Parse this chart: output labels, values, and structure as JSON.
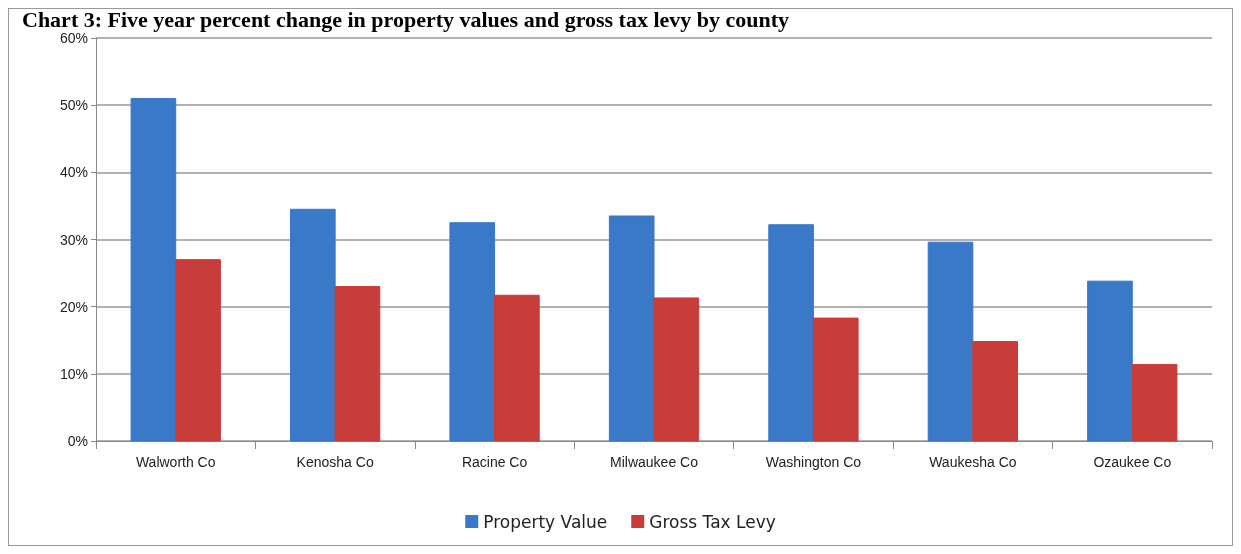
{
  "chart_data": {
    "type": "bar",
    "title": "Chart 3: Five year percent change in property values and gross tax levy by county",
    "categories": [
      "Walworth Co",
      "Kenosha Co",
      "Racine Co",
      "Milwaukee Co",
      "Washington Co",
      "Waukesha Co",
      "Ozaukee Co"
    ],
    "series": [
      {
        "name": "Property Value",
        "color": "#3a78c8",
        "values": [
          51,
          34.5,
          32.5,
          33.5,
          32.2,
          29.6,
          23.8
        ]
      },
      {
        "name": "Gross Tax Levy",
        "color": "#c83c3a",
        "values": [
          27,
          23,
          21.7,
          21.3,
          18.3,
          14.8,
          11.4
        ]
      }
    ],
    "ylim": [
      0,
      60
    ],
    "yticks": [
      {
        "value": 0,
        "label": "0%"
      },
      {
        "value": 10,
        "label": "10%"
      },
      {
        "value": 20,
        "label": "20%"
      },
      {
        "value": 30,
        "label": "30%"
      },
      {
        "value": 40,
        "label": "40%"
      },
      {
        "value": 50,
        "label": "50%"
      },
      {
        "value": 60,
        "label": "60%"
      }
    ],
    "grid": "y",
    "legend": "bottom"
  }
}
